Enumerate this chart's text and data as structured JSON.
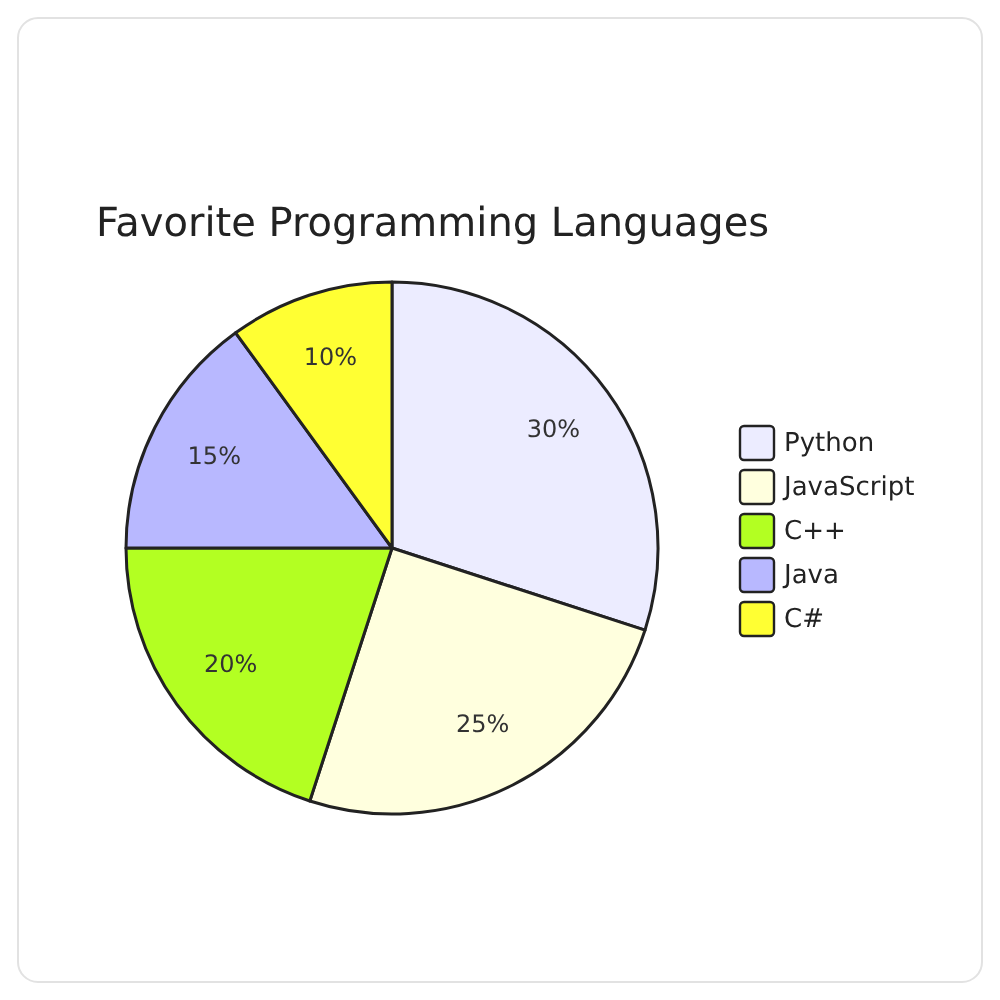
{
  "chart_data": {
    "type": "pie",
    "title": "Favorite Programming Languages",
    "categories": [
      "Python",
      "JavaScript",
      "C++",
      "Java",
      "C#"
    ],
    "values": [
      30,
      25,
      20,
      15,
      10
    ],
    "colors": [
      "#ececff",
      "#ffffde",
      "#b3ff22",
      "#b8b8ff",
      "#ffff33"
    ],
    "value_labels": [
      "30%",
      "25%",
      "20%",
      "15%",
      "10%"
    ],
    "legend": "right"
  }
}
